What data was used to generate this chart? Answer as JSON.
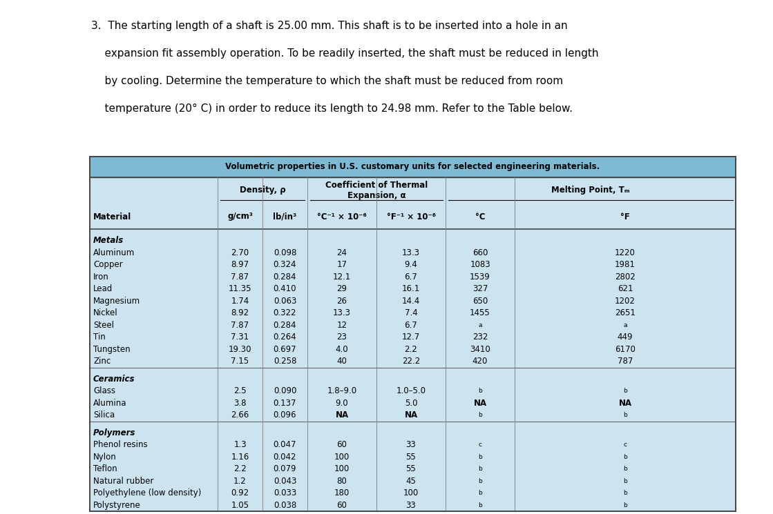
{
  "question_lines": [
    "3.  The starting length of a shaft is 25.00 mm. This shaft is to be inserted into a hole in an",
    "    expansion fit assembly operation. To be readily inserted, the shaft must be reduced in length",
    "    by cooling. Determine the temperature to which the shaft must be reduced from room",
    "    temperature (20° C) in order to reduce its length to 24.98 mm. Refer to the Table below."
  ],
  "table_title": "Volumetric properties in U.S. customary units for selected engineering materials.",
  "table_bg": "#cce4f0",
  "title_bg": "#7dbad4",
  "rows": [
    [
      "Metals",
      "",
      "",
      "",
      "",
      "",
      ""
    ],
    [
      "Aluminum",
      "2.70",
      "0.098",
      "24",
      "13.3",
      "660",
      "1220"
    ],
    [
      "Copper",
      "8.97",
      "0.324",
      "17",
      "9.4",
      "1083",
      "1981"
    ],
    [
      "Iron",
      "7.87",
      "0.284",
      "12.1",
      "6.7",
      "1539",
      "2802"
    ],
    [
      "Lead",
      "11.35",
      "0.410",
      "29",
      "16.1",
      "327",
      "621"
    ],
    [
      "Magnesium",
      "1.74",
      "0.063",
      "26",
      "14.4",
      "650",
      "1202"
    ],
    [
      "Nickel",
      "8.92",
      "0.322",
      "13.3",
      "7.4",
      "1455",
      "2651"
    ],
    [
      "Steel",
      "7.87",
      "0.284",
      "12",
      "6.7",
      "a",
      "a"
    ],
    [
      "Tin",
      "7.31",
      "0.264",
      "23",
      "12.7",
      "232",
      "449"
    ],
    [
      "Tungsten",
      "19.30",
      "0.697",
      "4.0",
      "2.2",
      "3410",
      "6170"
    ],
    [
      "Zinc",
      "7.15",
      "0.258",
      "40",
      "22.2",
      "420",
      "787"
    ],
    [
      "Ceramics",
      "",
      "",
      "",
      "",
      "",
      ""
    ],
    [
      "Glass",
      "2.5",
      "0.090",
      "1.8–9.0",
      "1.0–5.0",
      "b",
      "b"
    ],
    [
      "Alumina",
      "3.8",
      "0.137",
      "9.0",
      "5.0",
      "NA",
      "NA"
    ],
    [
      "Silica",
      "2.66",
      "0.096",
      "NA",
      "NA",
      "b",
      "b"
    ],
    [
      "Polymers",
      "",
      "",
      "",
      "",
      "",
      ""
    ],
    [
      "Phenol resins",
      "1.3",
      "0.047",
      "60",
      "33",
      "c",
      "c"
    ],
    [
      "Nylon",
      "1.16",
      "0.042",
      "100",
      "55",
      "b",
      "b"
    ],
    [
      "Teflon",
      "2.2",
      "0.079",
      "100",
      "55",
      "b",
      "b"
    ],
    [
      "Natural rubber",
      "1.2",
      "0.043",
      "80",
      "45",
      "b",
      "b"
    ],
    [
      "Polyethylene (low density)",
      "0.92",
      "0.033",
      "180",
      "100",
      "b",
      "b"
    ],
    [
      "Polystyrene",
      "1.05",
      "0.038",
      "60",
      "33",
      "b",
      "b"
    ]
  ]
}
